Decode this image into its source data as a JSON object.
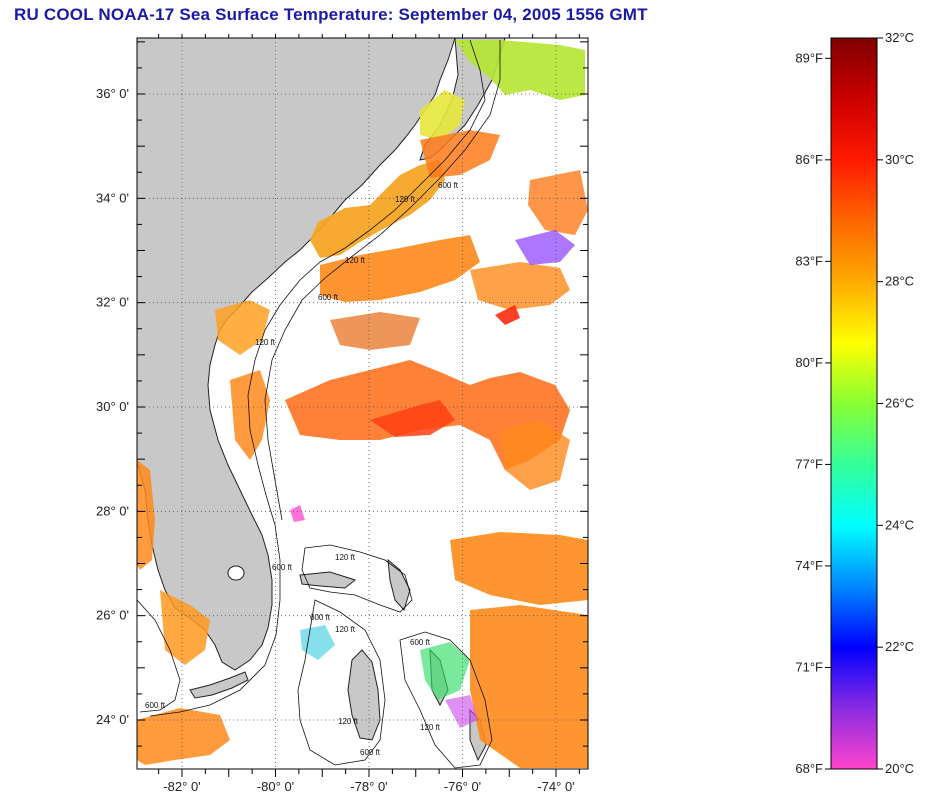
{
  "title": "RU COOL  NOAA-17  Sea Surface Temperature:  September 04, 2005 1556 GMT",
  "map": {
    "lat_labels": [
      {
        "text": "36° 0'",
        "lat": 36
      },
      {
        "text": "34° 0'",
        "lat": 34
      },
      {
        "text": "32° 0'",
        "lat": 32
      },
      {
        "text": "30° 0'",
        "lat": 30
      },
      {
        "text": "28° 0'",
        "lat": 28
      },
      {
        "text": "26° 0'",
        "lat": 26
      },
      {
        "text": "24° 0'",
        "lat": 24
      }
    ],
    "lon_labels": [
      {
        "text": "-82° 0'",
        "lon": -82
      },
      {
        "text": "-80° 0'",
        "lon": -80
      },
      {
        "text": "-78° 0'",
        "lon": -78
      },
      {
        "text": "-76° 0'",
        "lon": -76
      },
      {
        "text": "-74° 0'",
        "lon": -74
      }
    ],
    "contour_labels": [
      "120 ft",
      "600 ft",
      "120 ft",
      "600 ft",
      "120 ft",
      "600 ft",
      "120 ft",
      "600 ft",
      "600 ft",
      "120 ft",
      "600 ft",
      "120 ft",
      "600 ft",
      "120 ft"
    ]
  },
  "colorbar": {
    "fahrenheit_labels": [
      "89°F",
      "86°F",
      "83°F",
      "80°F",
      "77°F",
      "74°F",
      "71°F",
      "68°F"
    ],
    "celsius_labels": [
      "32°C",
      "30°C",
      "28°C",
      "26°C",
      "24°C",
      "22°C",
      "20°C"
    ],
    "range_c": [
      20,
      32
    ],
    "colors": [
      "#ff44cc",
      "#8a2be2",
      "#0000ff",
      "#0088ff",
      "#00ffff",
      "#33ff99",
      "#88ff33",
      "#ffff00",
      "#ffaa00",
      "#ff6600",
      "#ff1a00",
      "#cc0000",
      "#800000"
    ]
  }
}
